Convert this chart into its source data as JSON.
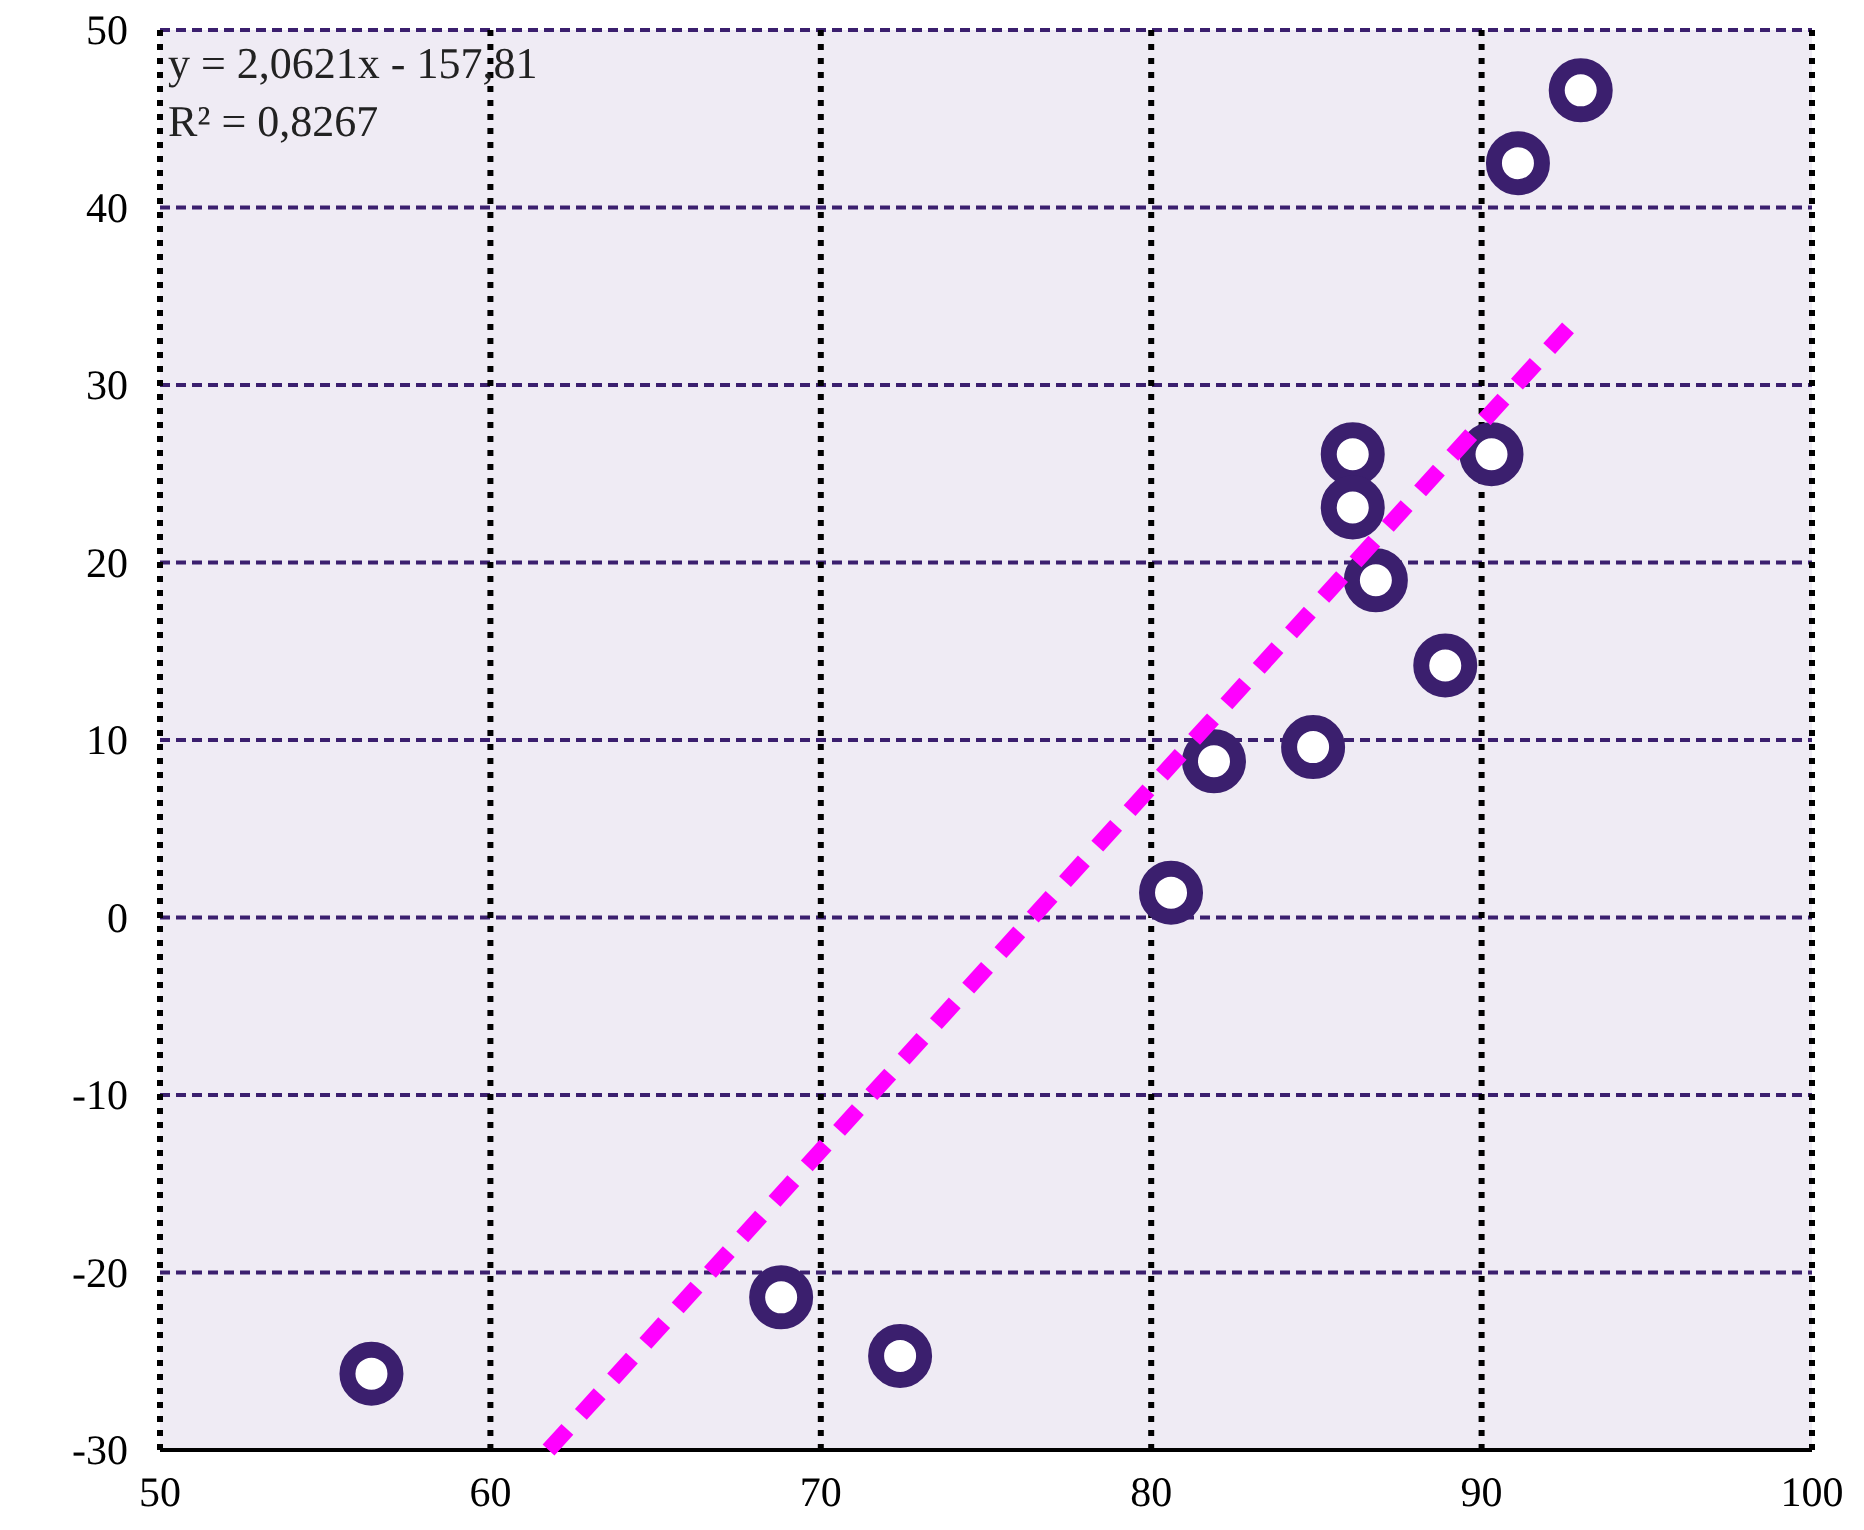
{
  "chart_data": {
    "type": "scatter",
    "xlim": [
      50,
      100
    ],
    "ylim": [
      -30,
      50
    ],
    "xticks": [
      50,
      60,
      70,
      80,
      90,
      100
    ],
    "yticks": [
      -30,
      -20,
      -10,
      0,
      10,
      20,
      30,
      40,
      50
    ],
    "grid": true,
    "marker": "circle",
    "annotations": [
      "y = 2,0621x - 157,81",
      "R² = 0,8267"
    ],
    "series": [
      {
        "color": "#3b1f6e",
        "x": [
          56.4,
          68.8,
          72.4,
          80.6,
          81.9,
          84.9,
          86.1,
          86.1,
          86.8,
          88.9,
          90.3,
          91.1,
          93.0
        ],
        "values": [
          -25.7,
          -21.4,
          -24.7,
          1.4,
          8.8,
          9.6,
          26.1,
          23.1,
          19.0,
          14.2,
          26.1,
          42.5,
          46.6
        ]
      },
      {
        "type": "line",
        "color": "#ff00ff",
        "line_style": "dashed",
        "marker": "none",
        "x": [
          61.76,
          93
        ],
        "values": [
          -30,
          34
        ]
      }
    ]
  }
}
